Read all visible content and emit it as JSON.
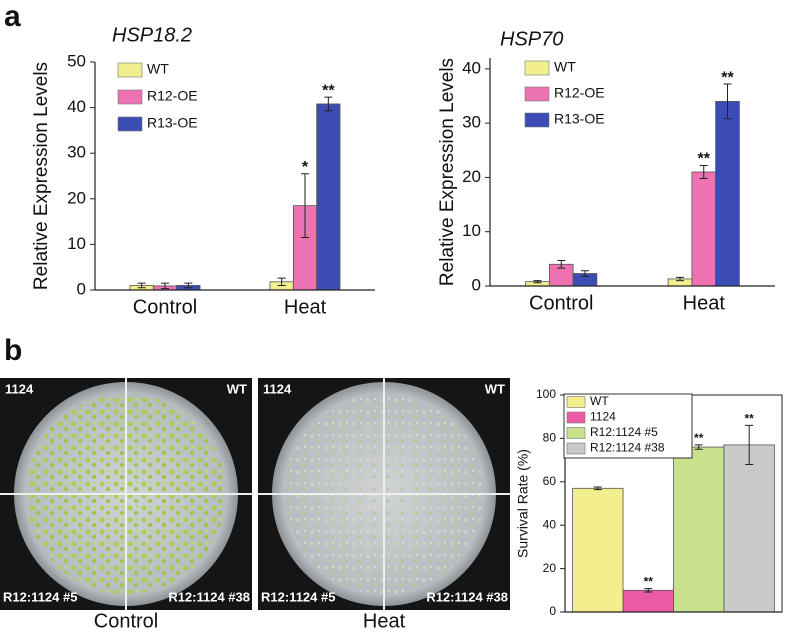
{
  "panel_labels": [
    "a",
    "b"
  ],
  "photos": [
    {
      "caption": "Control",
      "labels": [
        "1124",
        "WT",
        "R12:1124 #5",
        "R12:1124 #38"
      ]
    },
    {
      "caption": "Heat",
      "labels": [
        "1124",
        "WT",
        "R12:1124 #5",
        "R12:1124 #38"
      ]
    }
  ],
  "chart_data": [
    {
      "type": "bar",
      "title": "HSP18.2",
      "y_label": "Relative Expression Levels",
      "categories": [
        "Control",
        "Heat"
      ],
      "ylim": [
        0,
        50
      ],
      "yticks": [
        0,
        10,
        20,
        30,
        40,
        50
      ],
      "series": [
        {
          "name": "WT",
          "color": "#f3ef8e",
          "values": [
            1.0,
            1.8
          ],
          "errors": [
            0.5,
            0.8
          ],
          "significance": [
            null,
            null
          ]
        },
        {
          "name": "R12-OE",
          "color": "#ec72b2",
          "values": [
            0.9,
            18.5
          ],
          "errors": [
            0.6,
            7.0
          ],
          "significance": [
            null,
            "*"
          ]
        },
        {
          "name": "R13-OE",
          "color": "#3b4db4",
          "values": [
            1.0,
            40.8
          ],
          "errors": [
            0.5,
            1.5
          ],
          "significance": [
            null,
            "**"
          ]
        }
      ]
    },
    {
      "type": "bar",
      "title": "HSP70",
      "y_label": "Relative Expression Levels",
      "categories": [
        "Control",
        "Heat"
      ],
      "ylim": [
        0,
        42
      ],
      "yticks": [
        0,
        10,
        20,
        30,
        40
      ],
      "series": [
        {
          "name": "WT",
          "color": "#f3ef8e",
          "values": [
            0.8,
            1.3
          ],
          "errors": [
            0.2,
            0.3
          ],
          "significance": [
            null,
            null
          ]
        },
        {
          "name": "R12-OE",
          "color": "#ec72b2",
          "values": [
            4.0,
            21.0
          ],
          "errors": [
            0.7,
            1.2
          ],
          "significance": [
            null,
            "**"
          ]
        },
        {
          "name": "R13-OE",
          "color": "#3b4db4",
          "values": [
            2.3,
            34.0
          ],
          "errors": [
            0.5,
            3.2
          ],
          "significance": [
            null,
            "**"
          ]
        }
      ]
    },
    {
      "type": "bar",
      "y_label": "Survival Rate (%)",
      "categories": [
        null
      ],
      "ylim": [
        0,
        100
      ],
      "yticks": [
        0,
        20,
        40,
        60,
        80,
        100
      ],
      "series": [
        {
          "name": "WT",
          "color": "#f3ef8e",
          "values": [
            57
          ],
          "errors": [
            0.6
          ],
          "significance": [
            null
          ]
        },
        {
          "name": "1124",
          "color": "#ea5aa5",
          "values": [
            10
          ],
          "errors": [
            0.8
          ],
          "significance": [
            "**"
          ]
        },
        {
          "name": "R12:1124 #5",
          "color": "#c8e18c",
          "values": [
            76
          ],
          "errors": [
            1.0
          ],
          "significance": [
            "**"
          ]
        },
        {
          "name": "R12:1124 #38",
          "color": "#c9c9c9",
          "values": [
            77
          ],
          "errors": [
            9.0
          ],
          "significance": [
            "**"
          ]
        }
      ]
    }
  ]
}
